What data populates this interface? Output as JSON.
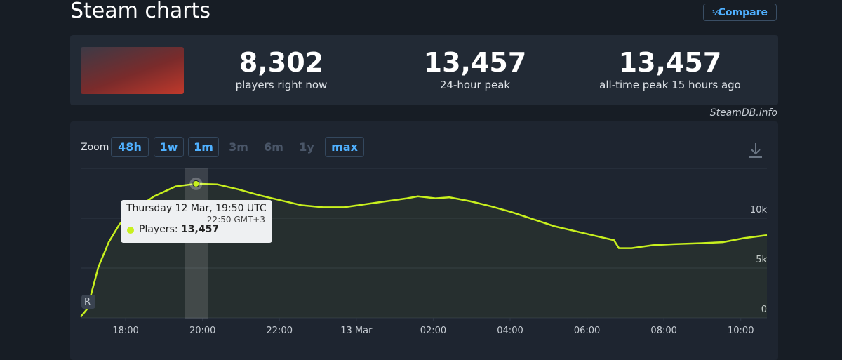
{
  "header": {
    "title": "Steam charts",
    "compare": "Compare"
  },
  "stats": [
    {
      "value": "8,302",
      "label": "players right now"
    },
    {
      "value": "13,457",
      "label": "24-hour peak"
    },
    {
      "value": "13,457",
      "label": "all-time peak 15 hours ago"
    }
  ],
  "source": "SteamDB.info",
  "zoom": {
    "label": "Zoom",
    "buttons": [
      "48h",
      "1w",
      "1m",
      "3m",
      "6m",
      "1y",
      "max"
    ]
  },
  "tooltip": {
    "title": "Thursday 12 Mar, 19:50 UTC",
    "subtitle": "22:50 GMT+3",
    "label": "Players:",
    "value": "13,457"
  },
  "marker": "R",
  "chart_data": {
    "type": "line",
    "x": [
      16.83,
      17.0,
      17.29,
      17.56,
      17.84,
      18.2,
      18.74,
      19.3,
      19.83,
      20.38,
      20.93,
      21.48,
      22.03,
      22.58,
      23.13,
      23.68,
      24.22,
      24.77,
      25.32,
      25.6,
      26.06,
      26.42,
      26.97,
      27.5,
      28.05,
      28.6,
      29.15,
      29.7,
      30.25,
      30.7,
      30.83,
      31.16,
      31.71,
      32.26,
      32.99,
      33.53,
      34.08,
      34.68
    ],
    "series": [
      {
        "name": "Players",
        "color": "#c8f01e",
        "values": [
          100,
          900,
          5100,
          7600,
          9400,
          10800,
          12200,
          13200,
          13457,
          13400,
          12900,
          12300,
          11800,
          11300,
          11100,
          11100,
          11400,
          11700,
          12000,
          12200,
          12000,
          12100,
          11700,
          11200,
          10600,
          9900,
          9200,
          8700,
          8200,
          7800,
          7000,
          7000,
          7300,
          7400,
          7500,
          7600,
          8000,
          8302
        ]
      }
    ],
    "xlim": [
      16.83,
      34.68
    ],
    "xticks": [
      {
        "value": 18,
        "label": "18:00"
      },
      {
        "value": 20,
        "label": "20:00"
      },
      {
        "value": 22,
        "label": "22:00"
      },
      {
        "value": 24,
        "label": "13 Mar"
      },
      {
        "value": 26,
        "label": "02:00"
      },
      {
        "value": 28,
        "label": "04:00"
      },
      {
        "value": 30,
        "label": "06:00"
      },
      {
        "value": 32,
        "label": "08:00"
      },
      {
        "value": 34,
        "label": "10:00"
      }
    ],
    "ylim": [
      0,
      15000
    ],
    "yticks": [
      0,
      {
        "value": 5000,
        "label": "5k"
      },
      {
        "value": 10000,
        "label": "10k"
      }
    ],
    "grid": true
  }
}
